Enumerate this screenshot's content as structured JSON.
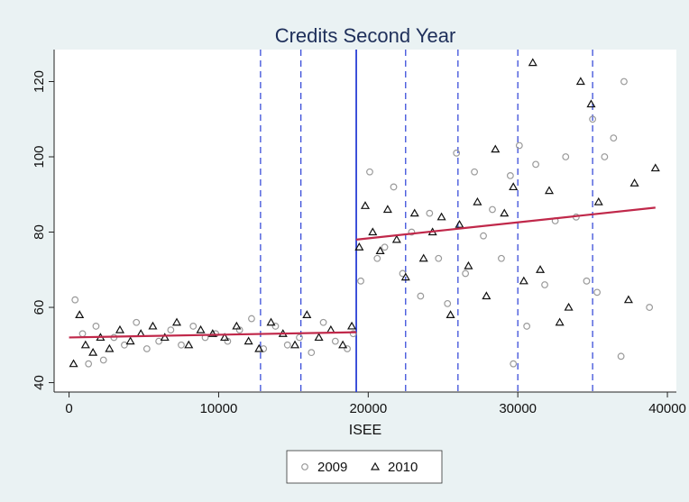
{
  "chart_data": {
    "type": "scatter",
    "title": "Credits Second Year",
    "x_label": "ISEE",
    "xlim": [
      -1000,
      40600
    ],
    "ylim": [
      37.5,
      128.5
    ],
    "xticks": [
      0,
      10000,
      20000,
      30000,
      40000
    ],
    "yticks": [
      40,
      60,
      80,
      100,
      120
    ],
    "cutoff": 19200,
    "cutoff_color": "#2a3fd6",
    "dashed_lines": [
      12800,
      15500,
      22500,
      26000,
      30000,
      35000
    ],
    "fit_color": "#c0284a",
    "fit": [
      {
        "x": [
          0,
          19200
        ],
        "y": [
          52,
          53.4
        ]
      },
      {
        "x": [
          19200,
          39200
        ],
        "y": [
          78,
          86.5
        ]
      }
    ],
    "legend": "bottom",
    "series": [
      {
        "name": "2009",
        "color": "#9a9a9a",
        "marker": "circle",
        "x": [
          400,
          900,
          1300,
          1800,
          2300,
          3000,
          3700,
          4500,
          5200,
          6000,
          6800,
          7500,
          8300,
          9100,
          9800,
          10600,
          11400,
          12200,
          13000,
          13800,
          14600,
          15400,
          16200,
          17000,
          17800,
          18600,
          19000,
          19500,
          20100,
          20600,
          21100,
          21700,
          22300,
          22900,
          23500,
          24100,
          24700,
          25300,
          25900,
          26500,
          27100,
          27700,
          28300,
          28900,
          29500,
          29700,
          30100,
          30600,
          31200,
          31800,
          32500,
          33200,
          33900,
          34600,
          35000,
          35300,
          35800,
          36400,
          36900,
          37100,
          38800
        ],
        "values": [
          62,
          53,
          45,
          55,
          46,
          52,
          50,
          56,
          49,
          51,
          54,
          50,
          55,
          52,
          53,
          51,
          54,
          57,
          49,
          55,
          50,
          52,
          48,
          56,
          51,
          49,
          53,
          67,
          96,
          73,
          76,
          92,
          69,
          80,
          63,
          85,
          73,
          61,
          101,
          69,
          96,
          79,
          86,
          73,
          95,
          45,
          103,
          55,
          98,
          66,
          83,
          100,
          84,
          67,
          110,
          64,
          100,
          105,
          47,
          120,
          60
        ]
      },
      {
        "name": "2010",
        "color": "#111111",
        "marker": "triangle",
        "x": [
          300,
          700,
          1100,
          1600,
          2100,
          2700,
          3400,
          4100,
          4800,
          5600,
          6400,
          7200,
          8000,
          8800,
          9600,
          10400,
          11200,
          12000,
          12700,
          13500,
          14300,
          15100,
          15900,
          16700,
          17500,
          18300,
          18900,
          19400,
          19800,
          20300,
          20800,
          21300,
          21900,
          22500,
          23100,
          23700,
          24300,
          24900,
          25500,
          26100,
          26700,
          27300,
          27900,
          28500,
          29100,
          29700,
          30400,
          31000,
          31500,
          32100,
          32800,
          33400,
          34200,
          34900,
          35400,
          37400,
          37800,
          39200
        ],
        "values": [
          45,
          58,
          50,
          48,
          52,
          49,
          54,
          51,
          53,
          55,
          52,
          56,
          50,
          54,
          53,
          52,
          55,
          51,
          49,
          56,
          53,
          50,
          58,
          52,
          54,
          50,
          55,
          76,
          87,
          80,
          75,
          86,
          78,
          68,
          85,
          73,
          80,
          84,
          58,
          82,
          71,
          88,
          63,
          102,
          85,
          92,
          67,
          125,
          70,
          91,
          56,
          60,
          120,
          114,
          88,
          62,
          93,
          97
        ]
      }
    ]
  }
}
